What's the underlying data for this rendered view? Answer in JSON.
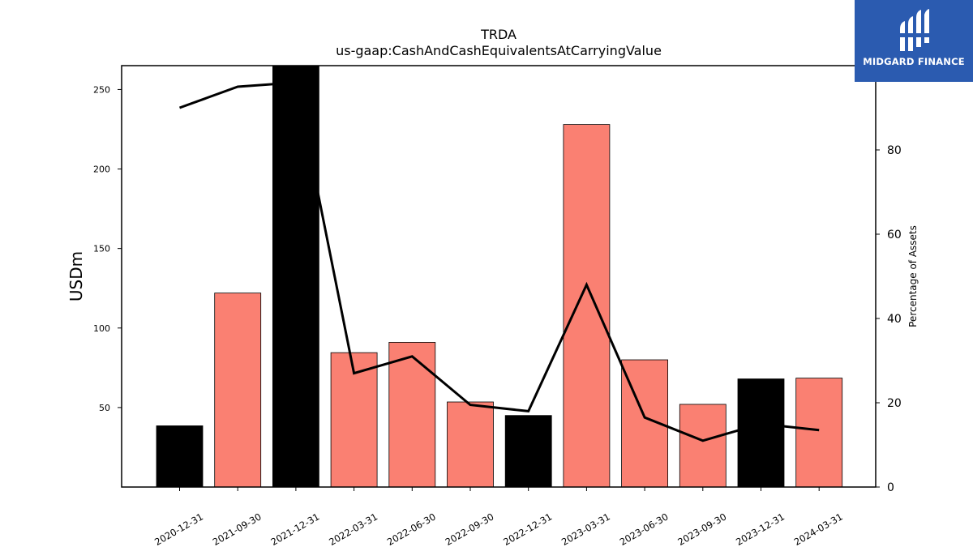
{
  "chart_data": {
    "type": "bar",
    "title": "TRDA",
    "subtitle": "us-gaap:CashAndCashEquivalentsAtCarryingValue",
    "ylabel": "USDm",
    "y2label": "Percentage of Assets",
    "ylim": [
      0,
      265
    ],
    "y2lim": [
      0,
      100
    ],
    "yticks": [
      50,
      100,
      150,
      200,
      250
    ],
    "y2ticks": [
      0,
      20,
      40,
      60,
      80
    ],
    "categories": [
      "2020-12-31",
      "2021-09-30",
      "2021-12-31",
      "2022-03-31",
      "2022-06-30",
      "2022-09-30",
      "2022-12-31",
      "2023-03-31",
      "2023-06-30",
      "2023-09-30",
      "2023-12-31",
      "2024-03-31"
    ],
    "series": [
      {
        "type": "bar",
        "values": [
          38.5,
          122,
          265,
          84.5,
          91,
          53.5,
          45,
          228,
          80,
          52,
          68,
          68.5
        ],
        "colors": [
          "#000000",
          "#fa8072",
          "#000000",
          "#fa8072",
          "#fa8072",
          "#fa8072",
          "#000000",
          "#fa8072",
          "#fa8072",
          "#fa8072",
          "#000000",
          "#fa8072"
        ]
      },
      {
        "type": "line",
        "axis": "right",
        "color": "#000000",
        "values": [
          90,
          95,
          96,
          27,
          31,
          19.5,
          18,
          48,
          16.5,
          11,
          15,
          13.5
        ]
      }
    ],
    "grid": false
  },
  "logo": {
    "text": "MIDGARD FINANCE",
    "background": "#2b5bb0"
  }
}
